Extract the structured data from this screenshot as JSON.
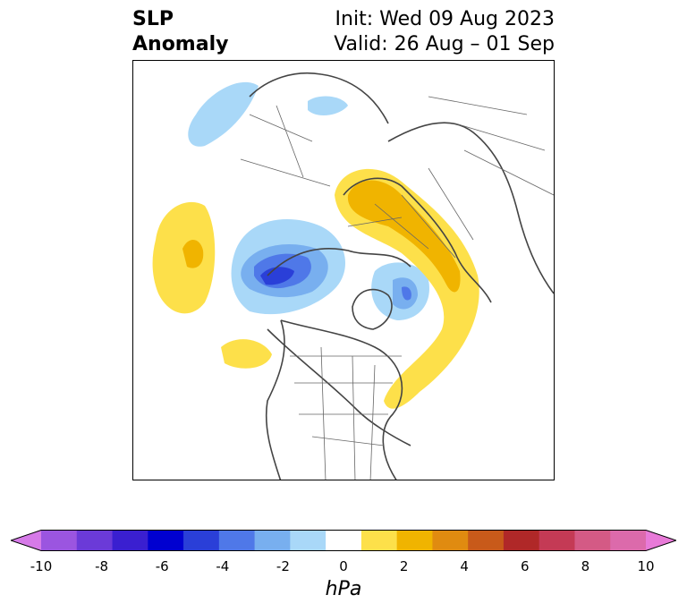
{
  "title": {
    "line1": "SLP",
    "line2": "Anomaly"
  },
  "info": {
    "init": "Init: Wed 09 Aug 2023",
    "valid": "Valid: 26 Aug – 01 Sep"
  },
  "colorbar": {
    "unit": "hPa",
    "ticks": [
      "-10",
      "-8",
      "-6",
      "-4",
      "-2",
      "0",
      "2",
      "4",
      "6",
      "8",
      "10"
    ],
    "colors": [
      "#d67ae8",
      "#9b55e0",
      "#6b3ad8",
      "#3a1fd0",
      "#0000d0",
      "#2a3fd8",
      "#4f78e8",
      "#78afef",
      "#a9d8f8",
      "#ffffff",
      "#fde04a",
      "#f0b400",
      "#e08b10",
      "#c85a1a",
      "#b02828",
      "#c43a55",
      "#d45a85",
      "#dc6aab",
      "#e87ad8"
    ]
  }
}
